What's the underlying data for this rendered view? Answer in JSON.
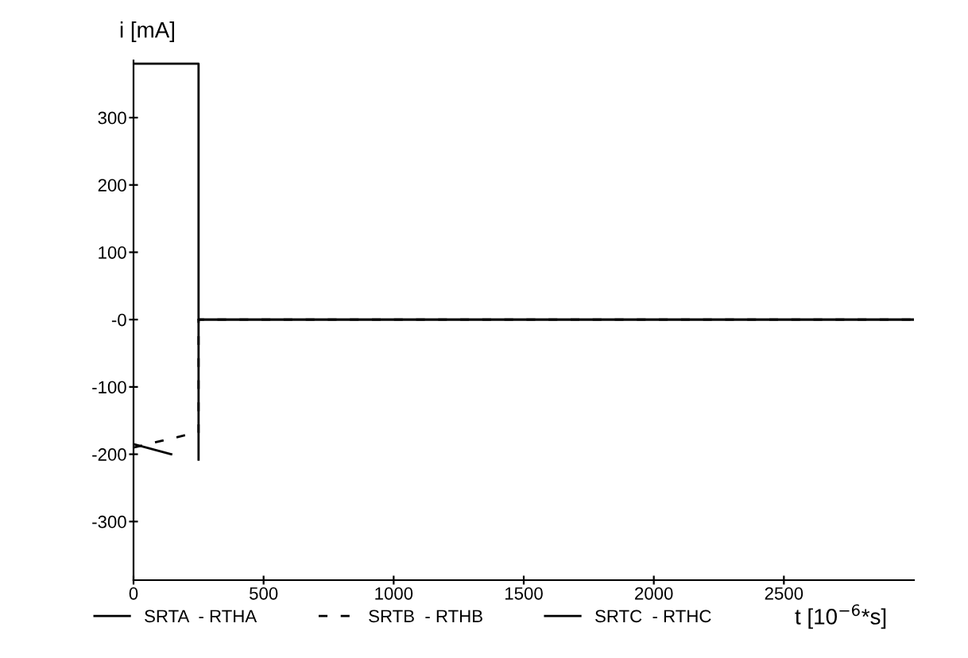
{
  "chart_data": {
    "type": "line",
    "xlabel": "t [10$^{−6}$*s]",
    "ylabel": "i [mA]",
    "xlim": [
      0,
      3000
    ],
    "ylim": [
      -387,
      385
    ],
    "xticks": [
      0,
      500,
      1000,
      1500,
      2000,
      2500
    ],
    "yticks": [
      -300,
      -200,
      -100,
      {
        "value": 0,
        "label": "-0"
      },
      100,
      200,
      300
    ],
    "grid": false,
    "legend": "bottom",
    "series": [
      {
        "name": "SRTA  - RTHA",
        "color": "#000000",
        "line_style": "solid",
        "x": [
          0,
          250,
          250,
          3000
        ],
        "values": [
          380,
          380,
          0,
          0
        ]
      },
      {
        "name": "SRTB  - RTHB",
        "color": "#000000",
        "line_style": "dashed",
        "x": [
          0,
          240,
          250,
          250,
          3000
        ],
        "values": [
          -190,
          -168,
          -168,
          0,
          0
        ]
      },
      {
        "name": "SRTC  - RTHC",
        "color": "#000000",
        "line_style": "solid",
        "x": [
          0,
          145,
          200,
          250,
          250,
          3000
        ],
        "values": [
          -185,
          -200,
          null,
          -208,
          0,
          0
        ]
      }
    ]
  }
}
